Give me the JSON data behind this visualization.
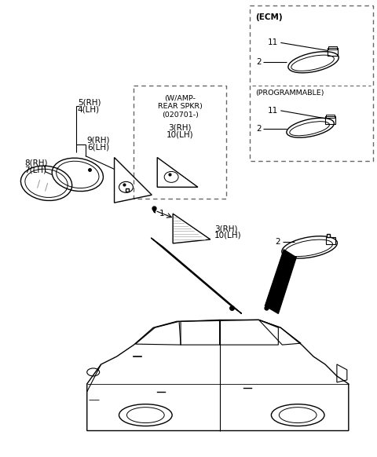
{
  "bg_color": "#ffffff",
  "line_color": "#000000",
  "dashed_box_color": "#666666",
  "text_color": "#000000",
  "labels": {
    "ecm": "(ECM)",
    "programmable": "(PROGRAMMABLE)",
    "wamp": "(W/AMP-\nREAR SPKR)\n(020701-)",
    "part1": "1",
    "part3rh": "3(RH)",
    "part3rh2": "3(RH)",
    "part10lh": "10(LH)",
    "part10lh2": "10(LH)",
    "part4lh": "4(LH)",
    "part5rh": "5(RH)",
    "part6lh": "6(LH)",
    "part7lh": "7(LH)",
    "part8rh": "8(RH)",
    "part9rh": "9(RH)",
    "part11a": "11",
    "part11b": "11",
    "part2a": "2",
    "part2b": "2",
    "part2c": "2"
  }
}
